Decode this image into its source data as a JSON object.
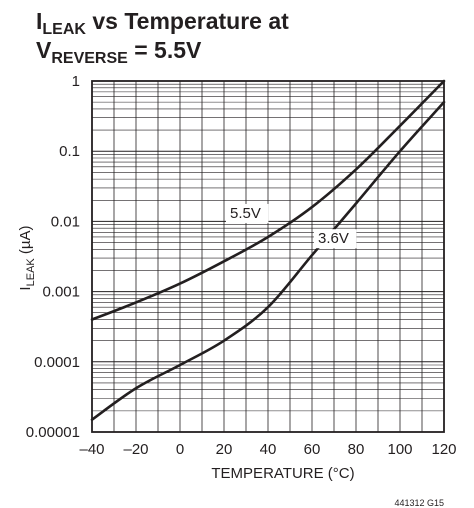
{
  "title": {
    "line1_main": "I",
    "line1_sub": "LEAK",
    "line1_rest": " vs Temperature at",
    "line2_main": "V",
    "line2_sub": "REVERSE",
    "line2_rest": " = 5.5V"
  },
  "figure_id": "441312 G15",
  "chart_data": {
    "type": "line",
    "x_scale": "linear",
    "y_scale": "log",
    "xlim": [
      -40,
      120
    ],
    "ylim": [
      1e-05,
      1
    ],
    "xlabel": "TEMPERATURE (°C)",
    "ylabel": {
      "main": "I",
      "sub": "LEAK",
      "rest": " (µA)"
    },
    "x_ticks": [
      -40,
      -20,
      0,
      20,
      40,
      60,
      80,
      100,
      120
    ],
    "x_tick_labels": [
      "–40",
      "–20",
      "0",
      "20",
      "40",
      "60",
      "80",
      "100",
      "120"
    ],
    "y_ticks": [
      1e-05,
      0.0001,
      0.001,
      0.01,
      0.1,
      1
    ],
    "y_tick_labels": [
      "0.00001",
      "0.0001",
      "0.001",
      "0.01",
      "0.1",
      "1"
    ],
    "grid": true,
    "series": [
      {
        "name": "5.5V",
        "x": [
          -40,
          -20,
          0,
          20,
          40,
          60,
          80,
          100,
          120
        ],
        "y": [
          0.0004,
          0.0007,
          0.0013,
          0.0027,
          0.006,
          0.016,
          0.055,
          0.23,
          1.0
        ]
      },
      {
        "name": "3.6V",
        "x": [
          -40,
          -20,
          0,
          20,
          40,
          60,
          80,
          100,
          120
        ],
        "y": [
          1.5e-05,
          4.2e-05,
          9e-05,
          0.0002,
          0.0006,
          0.0033,
          0.018,
          0.1,
          0.5
        ]
      }
    ]
  }
}
